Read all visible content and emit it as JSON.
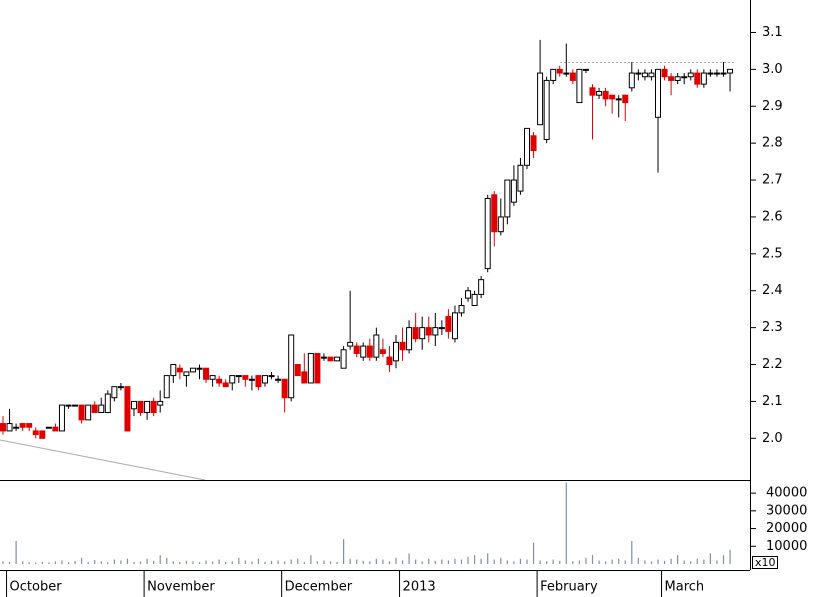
{
  "chart_data": {
    "type": "candlestick",
    "categories": [
      null,
      "October",
      null,
      null,
      null,
      null,
      null,
      null,
      null,
      null,
      null,
      null,
      null,
      null,
      null,
      null,
      null,
      null,
      null,
      null,
      null,
      null,
      "November",
      null,
      null,
      null,
      null,
      null,
      null,
      null,
      null,
      null,
      null,
      null,
      null,
      null,
      null,
      null,
      null,
      null,
      null,
      null,
      null,
      "December",
      null,
      null,
      null,
      null,
      null,
      null,
      null,
      null,
      null,
      null,
      null,
      null,
      null,
      null,
      null,
      null,
      null,
      "2013",
      null,
      null,
      null,
      null,
      null,
      null,
      null,
      null,
      null,
      null,
      null,
      null,
      null,
      null,
      null,
      null,
      null,
      null,
      null,
      null,
      "February",
      null,
      null,
      null,
      null,
      null,
      null,
      null,
      null,
      null,
      null,
      null,
      null,
      null,
      null,
      null,
      null,
      null,
      null,
      "March",
      null,
      null,
      null,
      null,
      null,
      null,
      null,
      null,
      null,
      null
    ],
    "open": [
      2.04,
      2.02,
      2.03,
      2.04,
      2.04,
      2.02,
      2.02,
      2.03,
      2.03,
      2.02,
      2.09,
      2.09,
      2.09,
      2.05,
      2.09,
      2.07,
      2.07,
      2.11,
      2.14,
      2.14,
      2.08,
      2.1,
      2.07,
      2.1,
      2.09,
      2.11,
      2.17,
      2.19,
      2.17,
      2.18,
      2.19,
      2.19,
      2.16,
      2.16,
      2.15,
      2.15,
      2.17,
      2.17,
      2.16,
      2.17,
      2.15,
      2.17,
      2.16,
      2.16,
      2.11,
      2.2,
      2.18,
      2.15,
      2.23,
      2.22,
      2.22,
      2.21,
      2.19,
      2.25,
      2.25,
      2.22,
      2.25,
      2.22,
      2.24,
      2.22,
      2.21,
      2.26,
      2.24,
      2.3,
      2.27,
      2.3,
      2.28,
      2.3,
      2.33,
      2.27,
      2.34,
      2.38,
      2.36,
      2.39,
      2.46,
      2.66,
      2.56,
      2.6,
      2.64,
      2.67,
      2.74,
      2.82,
      2.85,
      2.81,
      2.97,
      3.0,
      2.99,
      2.99,
      2.91,
      3.0,
      2.95,
      2.93,
      2.94,
      2.93,
      2.92,
      2.93,
      2.95,
      2.99,
      2.98,
      2.98,
      2.87,
      3.0,
      2.98,
      2.97,
      2.98,
      2.98,
      2.99,
      2.96,
      2.99,
      2.99,
      2.99,
      2.99
    ],
    "high": [
      2.06,
      2.08,
      2.04,
      2.04,
      2.04,
      2.03,
      2.02,
      2.03,
      2.04,
      2.09,
      2.09,
      2.09,
      2.09,
      2.09,
      2.1,
      2.11,
      2.13,
      2.14,
      2.15,
      2.14,
      2.1,
      2.1,
      2.1,
      2.11,
      2.13,
      2.17,
      2.2,
      2.2,
      2.18,
      2.19,
      2.2,
      2.19,
      2.17,
      2.17,
      2.16,
      2.17,
      2.17,
      2.17,
      2.17,
      2.17,
      2.17,
      2.18,
      2.17,
      2.16,
      2.28,
      2.2,
      2.23,
      2.23,
      2.23,
      2.23,
      2.22,
      2.22,
      2.25,
      2.4,
      2.26,
      2.26,
      2.27,
      2.3,
      2.27,
      2.25,
      2.28,
      2.3,
      2.32,
      2.34,
      2.33,
      2.33,
      2.34,
      2.32,
      2.35,
      2.36,
      2.38,
      2.41,
      2.4,
      2.44,
      2.66,
      2.67,
      2.65,
      2.7,
      2.74,
      2.76,
      2.84,
      2.83,
      3.08,
      2.98,
      3.0,
      3.01,
      3.07,
      3.0,
      3.0,
      3.0,
      2.96,
      2.95,
      2.95,
      2.93,
      2.93,
      2.93,
      3.02,
      3.0,
      3.0,
      3.0,
      3.0,
      3.01,
      2.99,
      2.99,
      2.99,
      3.0,
      3.0,
      3.0,
      3.0,
      3.0,
      3.02,
      3.0
    ],
    "low": [
      2.01,
      2.02,
      2.02,
      2.02,
      2.02,
      2.0,
      2.0,
      2.03,
      2.02,
      2.02,
      2.08,
      2.09,
      2.04,
      2.05,
      2.07,
      2.07,
      2.07,
      2.1,
      2.13,
      2.02,
      2.06,
      2.06,
      2.05,
      2.06,
      2.07,
      2.11,
      2.15,
      2.16,
      2.14,
      2.18,
      2.16,
      2.15,
      2.14,
      2.14,
      2.14,
      2.13,
      2.15,
      2.14,
      2.13,
      2.13,
      2.14,
      2.16,
      2.15,
      2.07,
      2.1,
      2.17,
      2.15,
      2.15,
      2.15,
      2.21,
      2.21,
      2.21,
      2.19,
      2.24,
      2.22,
      2.21,
      2.21,
      2.21,
      2.22,
      2.18,
      2.19,
      2.21,
      2.23,
      2.26,
      2.24,
      2.26,
      2.25,
      2.28,
      2.27,
      2.26,
      2.33,
      2.37,
      2.36,
      2.38,
      2.45,
      2.52,
      2.55,
      2.58,
      2.63,
      2.66,
      2.73,
      2.76,
      2.85,
      2.8,
      2.96,
      2.98,
      2.98,
      2.96,
      2.91,
      2.99,
      2.81,
      2.92,
      2.9,
      2.88,
      2.87,
      2.86,
      2.94,
      2.97,
      2.97,
      2.97,
      2.72,
      2.97,
      2.93,
      2.96,
      2.96,
      2.97,
      2.95,
      2.95,
      2.98,
      2.98,
      2.98,
      2.94
    ],
    "close": [
      2.02,
      2.04,
      2.03,
      2.03,
      2.03,
      2.01,
      2.0,
      2.03,
      2.02,
      2.09,
      2.09,
      2.09,
      2.05,
      2.09,
      2.07,
      2.09,
      2.12,
      2.14,
      2.14,
      2.02,
      2.1,
      2.07,
      2.1,
      2.07,
      2.1,
      2.17,
      2.2,
      2.18,
      2.18,
      2.19,
      2.19,
      2.16,
      2.17,
      2.15,
      2.14,
      2.17,
      2.17,
      2.16,
      2.16,
      2.14,
      2.17,
      2.17,
      2.16,
      2.11,
      2.28,
      2.17,
      2.15,
      2.23,
      2.15,
      2.22,
      2.21,
      2.22,
      2.24,
      2.26,
      2.23,
      2.25,
      2.22,
      2.28,
      2.23,
      2.2,
      2.26,
      2.24,
      2.3,
      2.27,
      2.3,
      2.28,
      2.3,
      2.3,
      2.29,
      2.34,
      2.36,
      2.4,
      2.39,
      2.43,
      2.65,
      2.56,
      2.6,
      2.7,
      2.7,
      2.74,
      2.84,
      2.78,
      2.99,
      2.97,
      3.0,
      2.99,
      2.99,
      2.97,
      3.0,
      3.0,
      2.93,
      2.94,
      2.92,
      2.92,
      2.92,
      2.91,
      2.99,
      2.99,
      2.99,
      2.99,
      3.0,
      2.98,
      2.97,
      2.98,
      2.98,
      2.99,
      2.96,
      2.99,
      2.99,
      2.99,
      2.99,
      3.0
    ],
    "up_color": "#ffffff",
    "down_color": "#e00000",
    "ylim": [
      1.887,
      3.188
    ],
    "yticks": [
      {
        "value": 2,
        "label": "2.0"
      },
      2.1,
      2.2,
      2.3,
      2.4,
      2.5,
      2.6,
      2.7,
      2.8,
      2.9,
      {
        "value": 3,
        "label": "3.0"
      },
      3.1
    ],
    "volume": {
      "values": [
        1500,
        1200,
        13000,
        1500,
        1000,
        800,
        1200,
        900,
        1500,
        2000,
        1000,
        1800,
        3500,
        1200,
        2200,
        1500,
        1000,
        2500,
        2000,
        3000,
        1200,
        1500,
        3000,
        1800,
        5000,
        3500,
        1500,
        1200,
        1800,
        1500,
        1000,
        2000,
        1500,
        2500,
        1200,
        1500,
        3500,
        2000,
        1500,
        3000,
        1200,
        1800,
        2000,
        1500,
        2500,
        3000,
        1200,
        5000,
        1500,
        2000,
        1500,
        1200,
        14000,
        3000,
        2500,
        1800,
        1500,
        3000,
        2500,
        1500,
        3500,
        2000,
        6000,
        2500,
        1500,
        3000,
        1800,
        2500,
        2000,
        3000,
        2500,
        4000,
        5000,
        3000,
        6000,
        2500,
        3500,
        2000,
        1500,
        3000,
        2500,
        12000,
        2000,
        1500,
        2500,
        1800,
        46000,
        1500,
        2000,
        3500,
        5000,
        2000,
        1500,
        2500,
        3000,
        2000,
        13000,
        3500,
        2000,
        1500,
        2500,
        1800,
        3000,
        5000,
        2000,
        1500,
        3000,
        2500,
        6000,
        2000,
        5000,
        8000
      ],
      "color": "#7f8fa6",
      "ylim": [
        0,
        47400
      ],
      "yticks": [
        10000,
        20000,
        30000,
        40000
      ],
      "unit_label": "x10"
    }
  }
}
